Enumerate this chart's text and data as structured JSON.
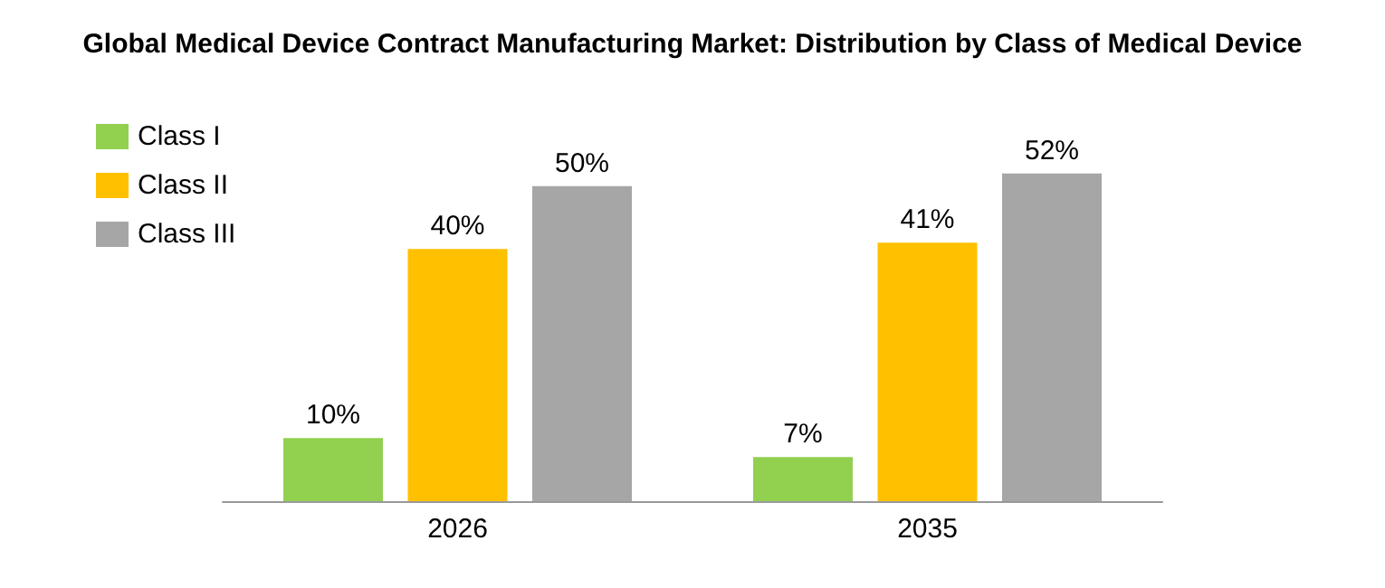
{
  "chart_data": {
    "type": "bar",
    "title": "Global Medical Device Contract Manufacturing Market: Distribution by Class of Medical Device",
    "categories": [
      "2026",
      "2035"
    ],
    "series": [
      {
        "name": "Class I",
        "color": "#92d050",
        "values": [
          10,
          7
        ],
        "value_labels": [
          "10%",
          "7%"
        ]
      },
      {
        "name": "Class II",
        "color": "#ffc000",
        "values": [
          40,
          41
        ],
        "value_labels": [
          "40%",
          "41%"
        ]
      },
      {
        "name": "Class III",
        "color": "#a6a6a6",
        "values": [
          50,
          52
        ],
        "value_labels": [
          "50%",
          "52%"
        ]
      }
    ],
    "legend": "top left"
  }
}
